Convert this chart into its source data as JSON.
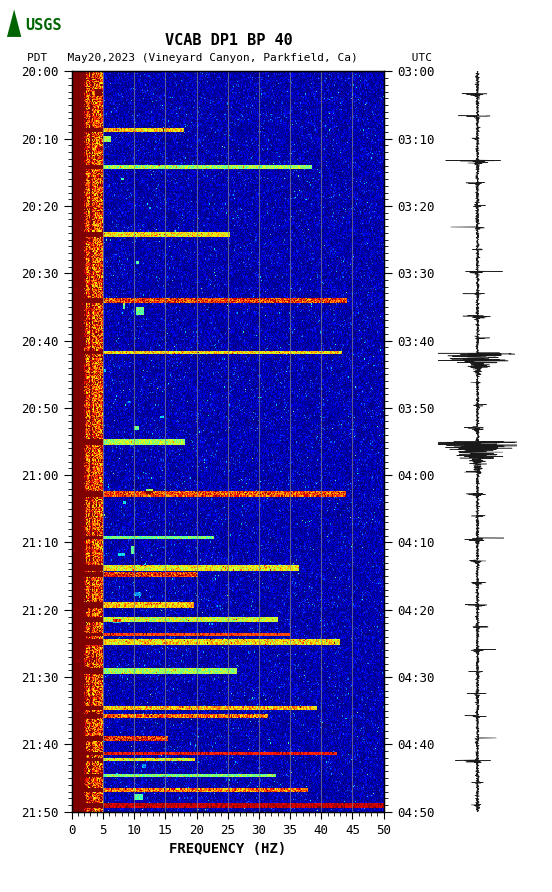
{
  "title_line1": "VCAB DP1 BP 40",
  "title_line2": "PDT   May20,2023 (Vineyard Canyon, Parkfield, Ca)        UTC",
  "xlabel": "FREQUENCY (HZ)",
  "freq_min": 0,
  "freq_max": 50,
  "ytick_pdt": [
    "20:00",
    "20:10",
    "20:20",
    "20:30",
    "20:40",
    "20:50",
    "21:00",
    "21:10",
    "21:20",
    "21:30",
    "21:40",
    "21:50"
  ],
  "ytick_utc": [
    "03:00",
    "03:10",
    "03:20",
    "03:30",
    "03:40",
    "03:50",
    "04:00",
    "04:10",
    "04:20",
    "04:30",
    "04:40",
    "04:50"
  ],
  "xticks": [
    0,
    5,
    10,
    15,
    20,
    25,
    30,
    35,
    40,
    45,
    50
  ],
  "vline_freqs": [
    5,
    10,
    15,
    20,
    25,
    30,
    35,
    40,
    45
  ],
  "colormap": "jet",
  "n_time": 660,
  "n_freq": 500,
  "seed": 42
}
